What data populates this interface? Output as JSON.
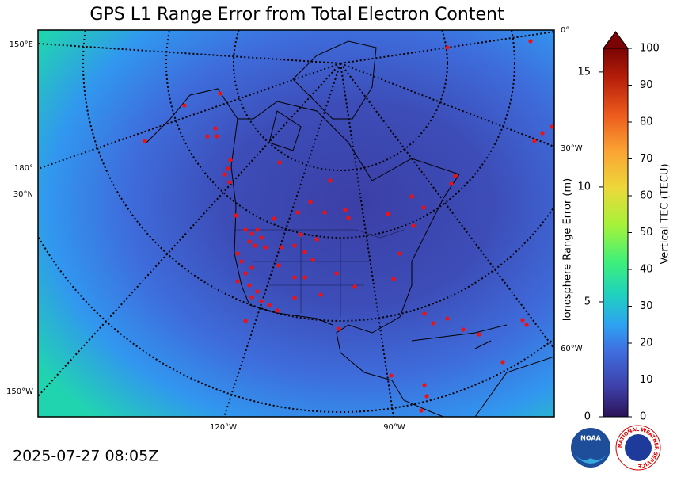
{
  "title": "GPS L1 Range Error from Total Electron Content",
  "timestamp": "2025-07-27 08:05Z",
  "map": {
    "graticule_labels": [
      "150°E",
      "180°",
      "30°N",
      "150°W",
      "0°",
      "30°W",
      "60°W",
      "120°W",
      "90°W"
    ]
  },
  "colorbar": {
    "label": "Vertical TEC (TECU)",
    "lim": [
      0,
      100
    ],
    "ticks": [
      0,
      10,
      20,
      30,
      40,
      50,
      60,
      70,
      80,
      90,
      100
    ]
  },
  "range_axis": {
    "label": "Ionosphere Range Error (m)",
    "lim": [
      0,
      16.03
    ],
    "ticks": [
      0,
      5,
      10,
      15
    ]
  },
  "logos": {
    "noaa": "NOAA",
    "nws": "NATIONAL WEATHER SERVICE"
  }
}
